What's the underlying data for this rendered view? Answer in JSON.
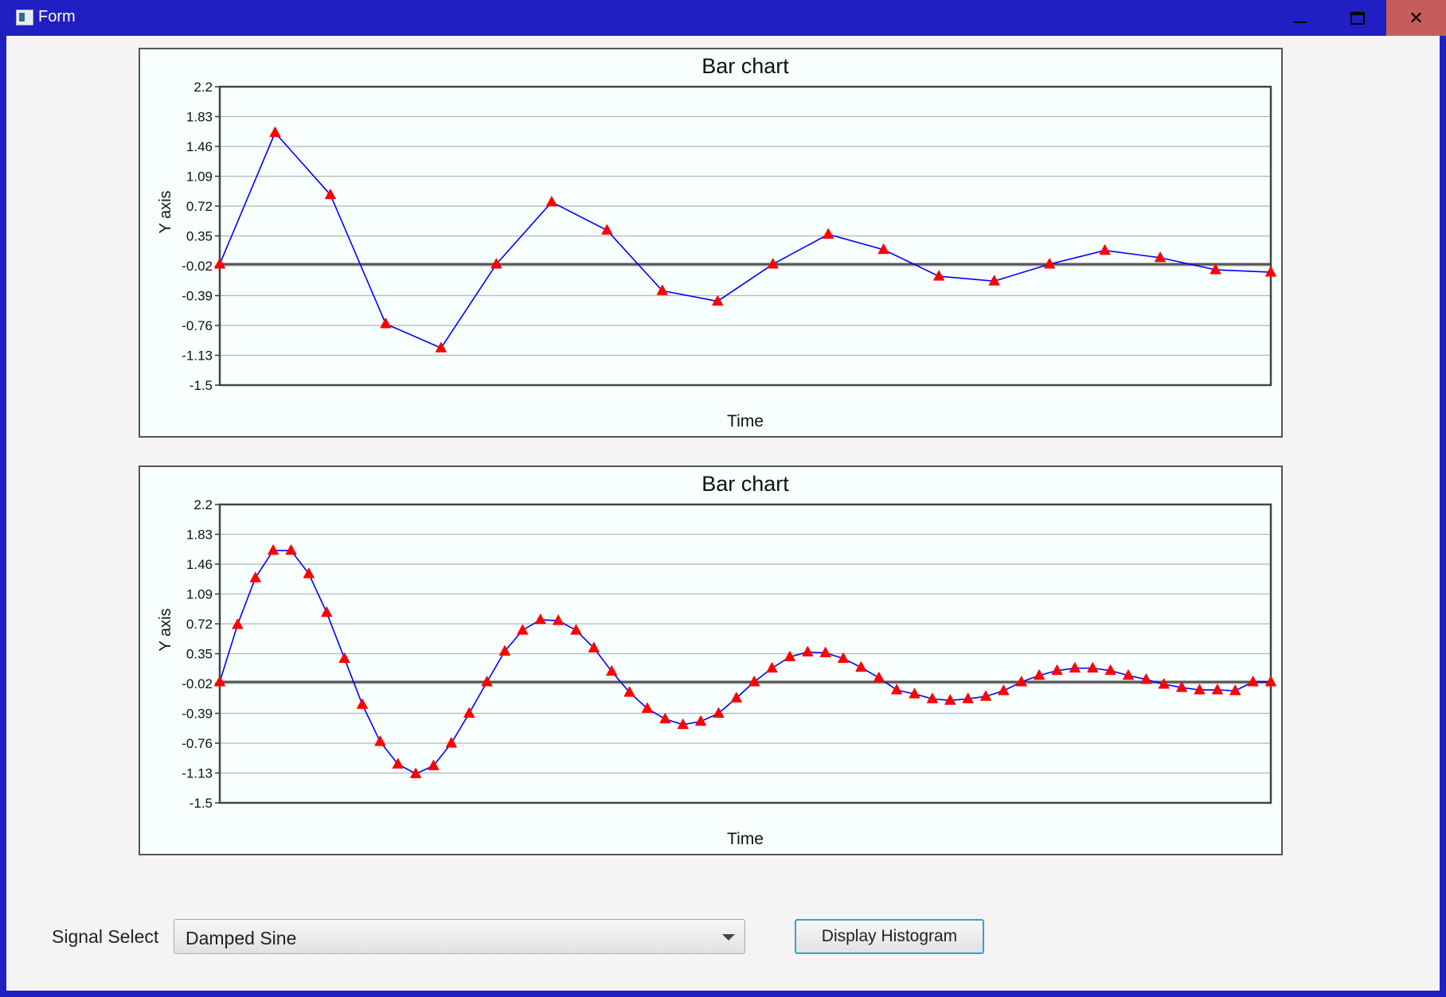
{
  "window": {
    "title": "Form",
    "minimize_symbol": "",
    "maximize_symbol": "",
    "close_symbol": "✕"
  },
  "controls": {
    "signal_select_label": "Signal Select",
    "signal_select_value": "Damped Sine",
    "display_button_label": "Display Histogram"
  },
  "colors": {
    "window_frame": "#1f1fc4",
    "line": "#0000ff",
    "marker": "#ff0000",
    "plot_bg": "#f8ffff"
  },
  "chart_data": [
    {
      "type": "line",
      "title": "Bar chart",
      "xlabel": "Time",
      "ylabel": "Y axis",
      "ylim": [
        -1.5,
        2.2
      ],
      "yticks": [
        "2.2",
        "1.83",
        "1.46",
        "1.09",
        "0.72",
        "0.35",
        "-0.02",
        "-0.39",
        "-0.76",
        "-1.13",
        "-1.5"
      ],
      "grid": true,
      "legend": "none",
      "marker": "triangle",
      "x": [
        0,
        1,
        2,
        3,
        4,
        5,
        6,
        7,
        8,
        9,
        10,
        11,
        12,
        13,
        14,
        15,
        16,
        17,
        18,
        19
      ],
      "values": [
        0,
        1.63,
        0.86,
        -0.74,
        -1.04,
        0.0,
        0.77,
        0.42,
        -0.33,
        -0.46,
        0.0,
        0.37,
        0.18,
        -0.15,
        -0.21,
        0.0,
        0.17,
        0.08,
        -0.07,
        -0.1
      ]
    },
    {
      "type": "line",
      "title": "Bar chart",
      "xlabel": "Time",
      "ylabel": "Y axis",
      "ylim": [
        -1.5,
        2.2
      ],
      "yticks": [
        "2.2",
        "1.83",
        "1.46",
        "1.09",
        "0.72",
        "0.35",
        "-0.02",
        "-0.39",
        "-0.76",
        "-1.13",
        "-1.5"
      ],
      "grid": true,
      "legend": "none",
      "marker": "triangle",
      "x": [
        0,
        1,
        2,
        3,
        4,
        5,
        6,
        7,
        8,
        9,
        10,
        11,
        12,
        13,
        14,
        15,
        16,
        17,
        18,
        19,
        20,
        21,
        22,
        23,
        24,
        25,
        26,
        27,
        28,
        29,
        30,
        31,
        32,
        33,
        34,
        35,
        36,
        37,
        38,
        39,
        40,
        41,
        42,
        43,
        44,
        45,
        46,
        47,
        48,
        49,
        50,
        51,
        52,
        53,
        54,
        55,
        56,
        57,
        58,
        59
      ],
      "values": [
        0,
        0.71,
        1.29,
        1.63,
        1.63,
        1.34,
        0.86,
        0.29,
        -0.28,
        -0.74,
        -1.02,
        -1.14,
        -1.04,
        -0.76,
        -0.39,
        0.0,
        0.38,
        0.64,
        0.77,
        0.76,
        0.64,
        0.42,
        0.13,
        -0.13,
        -0.33,
        -0.46,
        -0.53,
        -0.49,
        -0.39,
        -0.2,
        0.0,
        0.17,
        0.31,
        0.37,
        0.36,
        0.29,
        0.18,
        0.05,
        -0.1,
        -0.15,
        -0.21,
        -0.23,
        -0.21,
        -0.18,
        -0.11,
        0.0,
        0.08,
        0.14,
        0.17,
        0.17,
        0.14,
        0.08,
        0.03,
        -0.03,
        -0.07,
        -0.1,
        -0.1,
        -0.11,
        0.0,
        0.0
      ]
    }
  ]
}
